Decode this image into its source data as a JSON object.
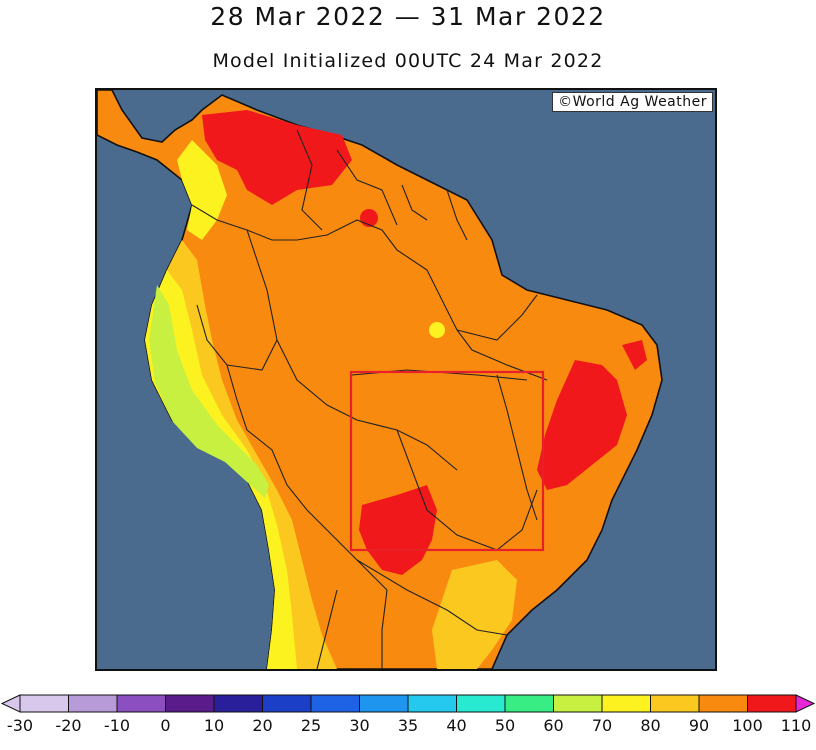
{
  "title": "28 Mar 2022 — 31 Mar 2022",
  "subtitle": "Model Initialized 00UTC 24 Mar 2022",
  "credit": "©World Ag Weather",
  "colors": {
    "ocean": "#4a6b8d",
    "highlight_box": "#e8202a"
  },
  "legend": {
    "labels": [
      "-30",
      "-20",
      "-10",
      "0",
      "10",
      "20",
      "25",
      "30",
      "35",
      "40",
      "50",
      "60",
      "70",
      "80",
      "90",
      "100",
      "110"
    ],
    "colors": [
      "#d7c8ec",
      "#b79ad8",
      "#8b4fc0",
      "#5a1c8a",
      "#2a1f9a",
      "#1c3fc8",
      "#1e62e6",
      "#1e96f0",
      "#25c9ee",
      "#28ead1",
      "#38ee84",
      "#c8f040",
      "#fcf21f",
      "#fbc81f",
      "#f98a10",
      "#f0181a",
      "#e925d8"
    ]
  }
}
